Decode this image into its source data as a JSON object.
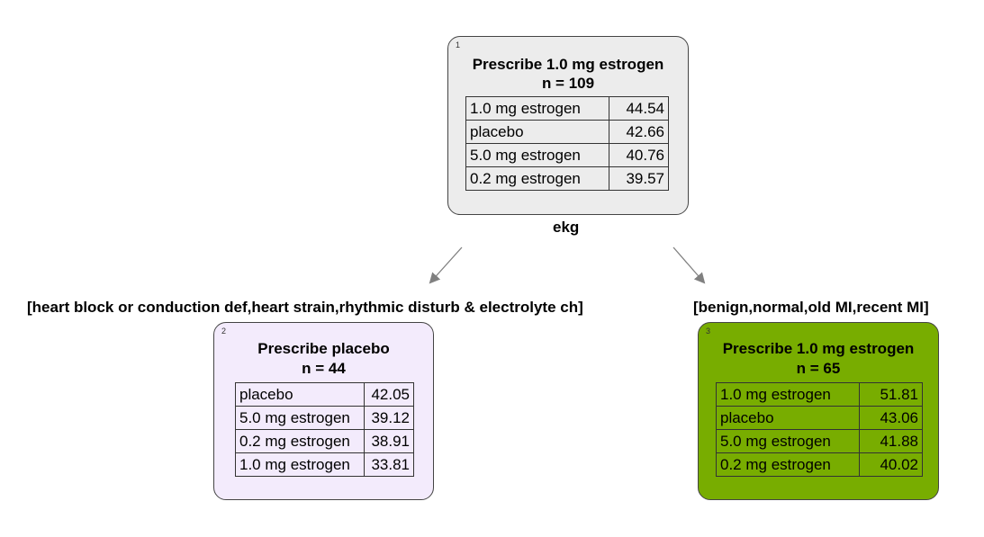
{
  "tree": {
    "root": {
      "id": "1",
      "title": "Prescribe 1.0 mg estrogen",
      "n": "n = 109",
      "fill": "#ececec",
      "rows": [
        {
          "label": "1.0 mg estrogen",
          "value": "44.54"
        },
        {
          "label": "placebo",
          "value": "42.66"
        },
        {
          "label": "5.0 mg estrogen",
          "value": "40.76"
        },
        {
          "label": "0.2 mg estrogen",
          "value": "39.57"
        }
      ],
      "split_variable": "ekg"
    },
    "left_branch": "[heart block or conduction def,heart strain,rhythmic disturb & electrolyte ch]",
    "right_branch": "[benign,normal,old MI,recent MI]",
    "left": {
      "id": "2",
      "title": "Prescribe placebo",
      "n": "n = 44",
      "fill": "#f3ebfc",
      "rows": [
        {
          "label": "placebo",
          "value": "42.05"
        },
        {
          "label": "5.0 mg estrogen",
          "value": "39.12"
        },
        {
          "label": "0.2 mg estrogen",
          "value": "38.91"
        },
        {
          "label": "1.0 mg estrogen",
          "value": "33.81"
        }
      ]
    },
    "right": {
      "id": "3",
      "title": "Prescribe 1.0 mg estrogen",
      "n": "n = 65",
      "fill": "#78ad00",
      "rows": [
        {
          "label": "1.0 mg estrogen",
          "value": "51.81"
        },
        {
          "label": "placebo",
          "value": "43.06"
        },
        {
          "label": "5.0 mg estrogen",
          "value": "41.88"
        },
        {
          "label": "0.2 mg estrogen",
          "value": "40.02"
        }
      ]
    },
    "edge_color": "#808080"
  }
}
